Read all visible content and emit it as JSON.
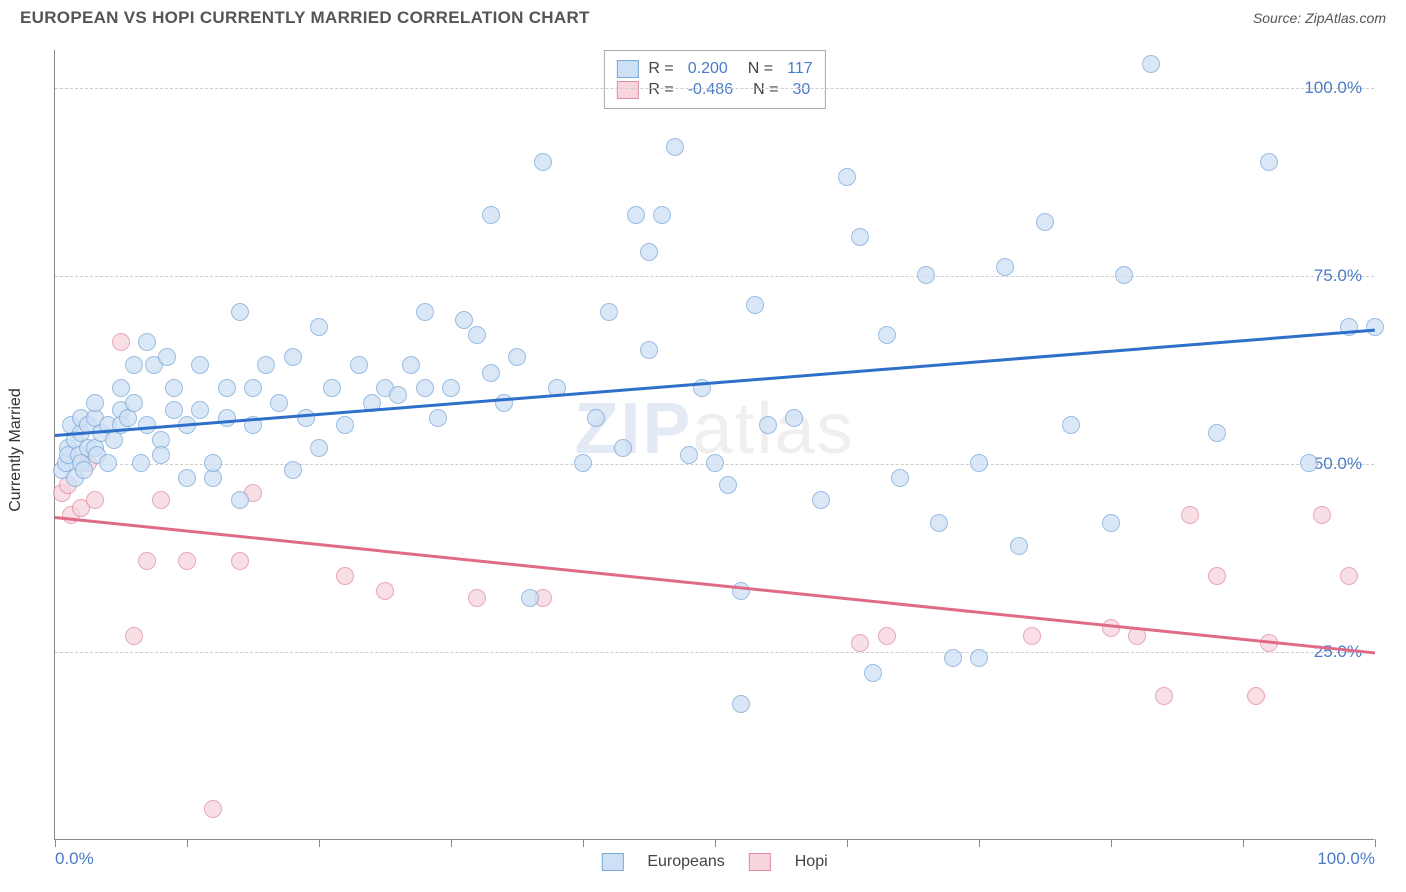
{
  "header": {
    "title": "EUROPEAN VS HOPI CURRENTLY MARRIED CORRELATION CHART",
    "source": "Source: ZipAtlas.com"
  },
  "chart": {
    "type": "scatter",
    "ylabel": "Currently Married",
    "xlim": [
      0,
      100
    ],
    "ylim": [
      0,
      105
    ],
    "xtick_step": 10,
    "xtick_labels": {
      "0": "0.0%",
      "100": "100.0%"
    },
    "ytick_positions": [
      25,
      50,
      75,
      100
    ],
    "ytick_labels": [
      "25.0%",
      "50.0%",
      "75.0%",
      "100.0%"
    ],
    "grid_color": "#cccccc",
    "axis_color": "#888888",
    "background_color": "#ffffff",
    "label_color": "#4a7bc8",
    "marker_radius": 9,
    "marker_stroke_width": 1.5,
    "watermark": {
      "z": "ZIP",
      "rest": "atlas"
    }
  },
  "series": {
    "european": {
      "label": "Europeans",
      "fill": "#cde0f5",
      "stroke": "#7aa8d8",
      "fill_opacity": 0.75,
      "R": "0.200",
      "N": "117",
      "trend": {
        "y_at_x0": 54,
        "y_at_x100": 68,
        "color": "#2e6fc9"
      },
      "points": [
        [
          0.5,
          49
        ],
        [
          0.8,
          50
        ],
        [
          1,
          52
        ],
        [
          1,
          51
        ],
        [
          1.2,
          55
        ],
        [
          1.5,
          48
        ],
        [
          1.5,
          53
        ],
        [
          1.8,
          51
        ],
        [
          2,
          50
        ],
        [
          2,
          54
        ],
        [
          2,
          56
        ],
        [
          2.2,
          49
        ],
        [
          2.5,
          52
        ],
        [
          2.5,
          55
        ],
        [
          3,
          56
        ],
        [
          3,
          52
        ],
        [
          3,
          58
        ],
        [
          3.2,
          51
        ],
        [
          3.5,
          54
        ],
        [
          4,
          55
        ],
        [
          4,
          50
        ],
        [
          4.5,
          53
        ],
        [
          5,
          57
        ],
        [
          5,
          60
        ],
        [
          5,
          55
        ],
        [
          5.5,
          56
        ],
        [
          6,
          58
        ],
        [
          6,
          63
        ],
        [
          6.5,
          50
        ],
        [
          7,
          55
        ],
        [
          7,
          66
        ],
        [
          7.5,
          63
        ],
        [
          8,
          53
        ],
        [
          8,
          51
        ],
        [
          8.5,
          64
        ],
        [
          9,
          57
        ],
        [
          9,
          60
        ],
        [
          10,
          48
        ],
        [
          10,
          55
        ],
        [
          11,
          57
        ],
        [
          11,
          63
        ],
        [
          12,
          48
        ],
        [
          12,
          50
        ],
        [
          13,
          56
        ],
        [
          13,
          60
        ],
        [
          14,
          70
        ],
        [
          14,
          45
        ],
        [
          15,
          55
        ],
        [
          15,
          60
        ],
        [
          16,
          63
        ],
        [
          17,
          58
        ],
        [
          18,
          49
        ],
        [
          18,
          64
        ],
        [
          19,
          56
        ],
        [
          20,
          52
        ],
        [
          20,
          68
        ],
        [
          21,
          60
        ],
        [
          22,
          55
        ],
        [
          23,
          63
        ],
        [
          24,
          58
        ],
        [
          25,
          60
        ],
        [
          26,
          59
        ],
        [
          27,
          63
        ],
        [
          28,
          60
        ],
        [
          28,
          70
        ],
        [
          29,
          56
        ],
        [
          30,
          60
        ],
        [
          31,
          69
        ],
        [
          32,
          67
        ],
        [
          33,
          62
        ],
        [
          33,
          83
        ],
        [
          34,
          58
        ],
        [
          35,
          64
        ],
        [
          36,
          32
        ],
        [
          37,
          90
        ],
        [
          38,
          60
        ],
        [
          40,
          50
        ],
        [
          41,
          56
        ],
        [
          42,
          70
        ],
        [
          43,
          52
        ],
        [
          44,
          83
        ],
        [
          45,
          65
        ],
        [
          45,
          78
        ],
        [
          46,
          83
        ],
        [
          47,
          92
        ],
        [
          48,
          51
        ],
        [
          49,
          60
        ],
        [
          50,
          50
        ],
        [
          51,
          47
        ],
        [
          52,
          18
        ],
        [
          52,
          33
        ],
        [
          53,
          71
        ],
        [
          54,
          55
        ],
        [
          56,
          56
        ],
        [
          58,
          45
        ],
        [
          60,
          88
        ],
        [
          61,
          80
        ],
        [
          62,
          22
        ],
        [
          63,
          67
        ],
        [
          64,
          48
        ],
        [
          66,
          75
        ],
        [
          67,
          42
        ],
        [
          68,
          24
        ],
        [
          70,
          24
        ],
        [
          70,
          50
        ],
        [
          72,
          76
        ],
        [
          73,
          39
        ],
        [
          75,
          82
        ],
        [
          77,
          55
        ],
        [
          80,
          42
        ],
        [
          81,
          75
        ],
        [
          83,
          103
        ],
        [
          88,
          54
        ],
        [
          92,
          90
        ],
        [
          95,
          50
        ],
        [
          98,
          68
        ],
        [
          100,
          68
        ]
      ]
    },
    "hopi": {
      "label": "Hopi",
      "fill": "#f6d5dd",
      "stroke": "#e08ba0",
      "fill_opacity": 0.75,
      "R": "-0.486",
      "N": "30",
      "trend": {
        "y_at_x0": 43,
        "y_at_x100": 25,
        "color": "#e06b87"
      },
      "points": [
        [
          0.5,
          46
        ],
        [
          1,
          47
        ],
        [
          1.2,
          43
        ],
        [
          2,
          44
        ],
        [
          2.5,
          50
        ],
        [
          3,
          45
        ],
        [
          5,
          66
        ],
        [
          6,
          27
        ],
        [
          7,
          37
        ],
        [
          8,
          45
        ],
        [
          10,
          37
        ],
        [
          12,
          4
        ],
        [
          14,
          37
        ],
        [
          15,
          46
        ],
        [
          22,
          35
        ],
        [
          25,
          33
        ],
        [
          32,
          32
        ],
        [
          37,
          32
        ],
        [
          61,
          26
        ],
        [
          63,
          27
        ],
        [
          74,
          27
        ],
        [
          80,
          28
        ],
        [
          82,
          27
        ],
        [
          84,
          19
        ],
        [
          86,
          43
        ],
        [
          88,
          35
        ],
        [
          91,
          19
        ],
        [
          92,
          26
        ],
        [
          96,
          43
        ],
        [
          98,
          35
        ]
      ]
    }
  },
  "legend_top": {
    "r_label": "R =",
    "n_label": "N ="
  },
  "legend_bottom": {
    "items": [
      "Europeans",
      "Hopi"
    ]
  }
}
